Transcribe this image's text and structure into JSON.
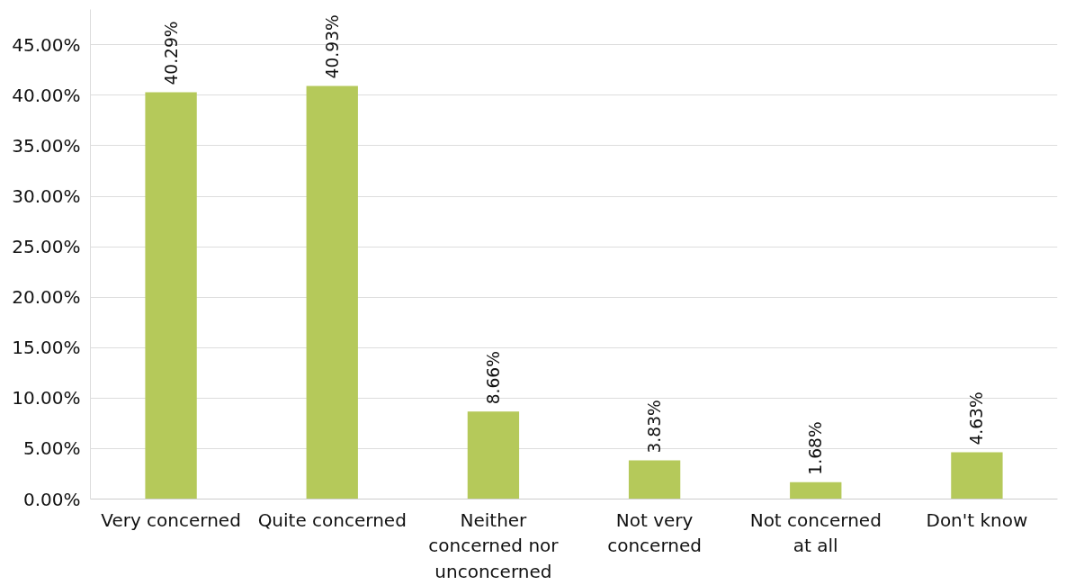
{
  "chart_data": {
    "type": "bar",
    "categories": [
      "Very concerned",
      "Quite concerned",
      "Neither\nconcerned nor\nunconcerned",
      "Not very\nconcerned",
      "Not concerned\nat all",
      "Don't know"
    ],
    "values": [
      40.29,
      40.93,
      8.66,
      3.83,
      1.68,
      4.63
    ],
    "value_labels": [
      "40.29%",
      "40.93%",
      "8.66%",
      "3.83%",
      "1.68%",
      "4.63%"
    ],
    "color": "#b5c95a",
    "ylim": [
      0,
      48.5
    ],
    "yticks": [
      {
        "value": 0,
        "label": "0.00%"
      },
      {
        "value": 5,
        "label": "5.00%"
      },
      {
        "value": 10,
        "label": "10.00%"
      },
      {
        "value": 15,
        "label": "15.00%"
      },
      {
        "value": 20,
        "label": "20.00%"
      },
      {
        "value": 25,
        "label": "25.00%"
      },
      {
        "value": 30,
        "label": "30.00%"
      },
      {
        "value": 35,
        "label": "35.00%"
      },
      {
        "value": 40,
        "label": "40.00%"
      },
      {
        "value": 45,
        "label": "45.00%"
      }
    ],
    "grid": "y"
  }
}
